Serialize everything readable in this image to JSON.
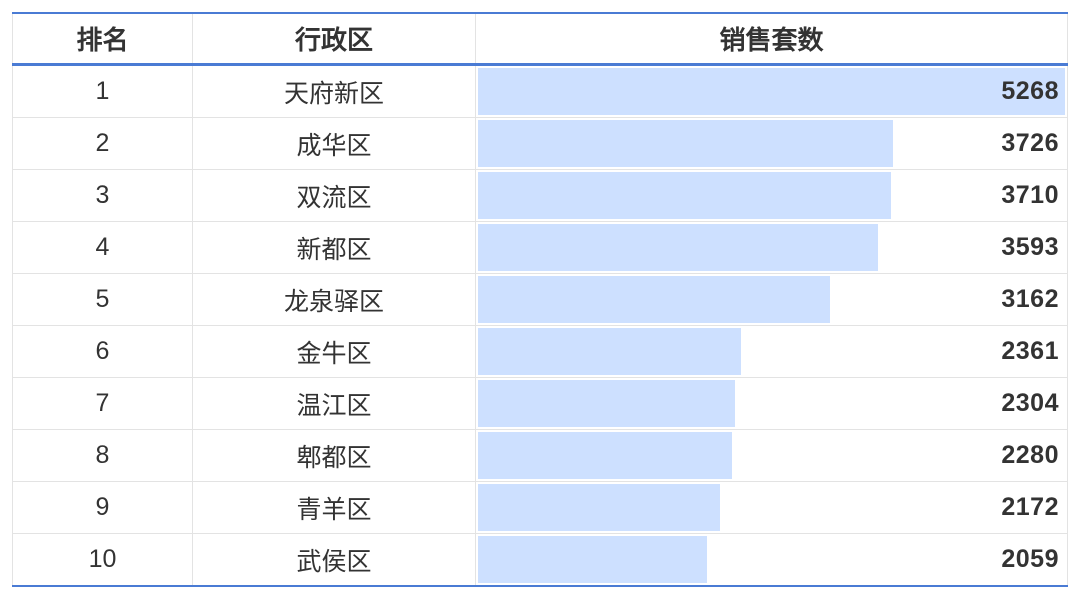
{
  "chart_data": {
    "type": "table",
    "columns": [
      "排名",
      "行政区",
      "销售套数"
    ],
    "rows": [
      {
        "rank": "1",
        "district": "天府新区",
        "value": 5268
      },
      {
        "rank": "2",
        "district": "成华区",
        "value": 3726
      },
      {
        "rank": "3",
        "district": "双流区",
        "value": 3710
      },
      {
        "rank": "4",
        "district": "新都区",
        "value": 3593
      },
      {
        "rank": "5",
        "district": "龙泉驿区",
        "value": 3162
      },
      {
        "rank": "6",
        "district": "金牛区",
        "value": 2361
      },
      {
        "rank": "7",
        "district": "温江区",
        "value": 2304
      },
      {
        "rank": "8",
        "district": "郫都区",
        "value": 2280
      },
      {
        "rank": "9",
        "district": "青羊区",
        "value": 2172
      },
      {
        "rank": "10",
        "district": "武侯区",
        "value": 2059
      }
    ],
    "bar_color": "#cde0ff",
    "accent_color": "#4a7bd4"
  }
}
